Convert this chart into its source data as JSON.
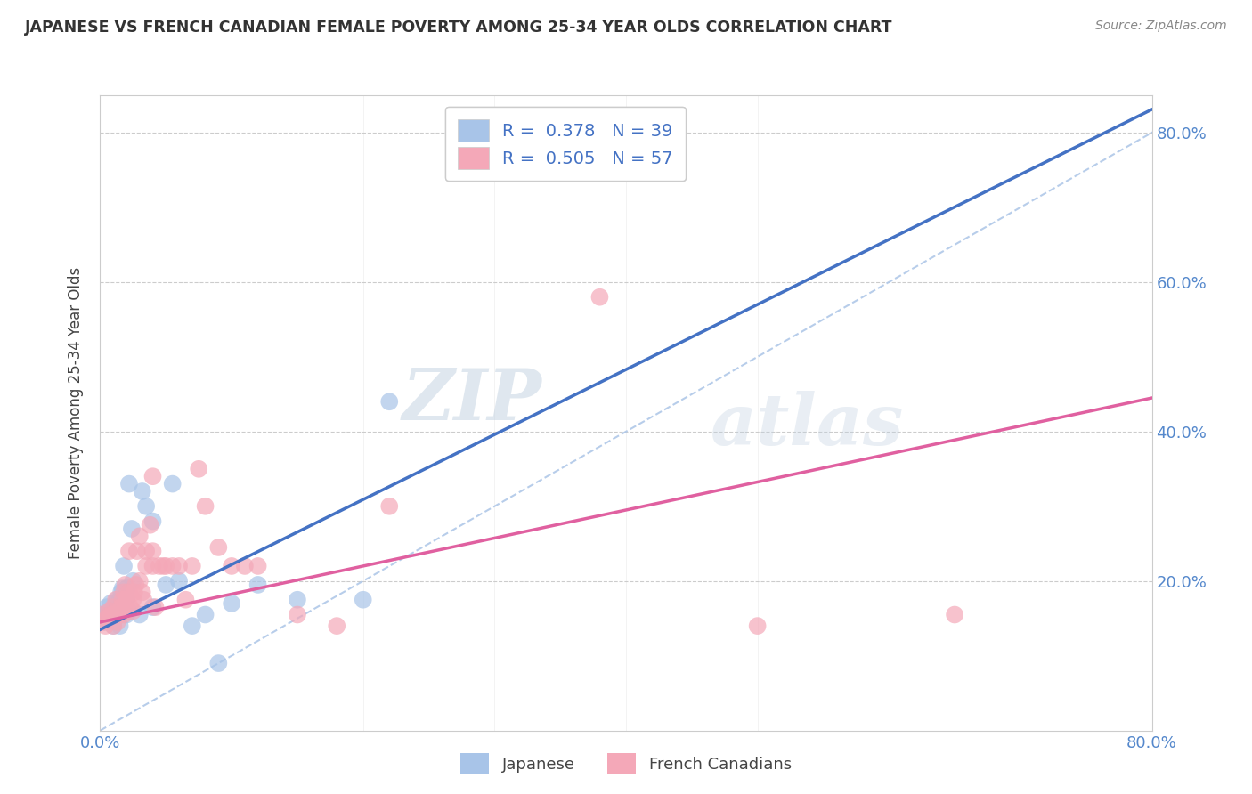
{
  "title": "JAPANESE VS FRENCH CANADIAN FEMALE POVERTY AMONG 25-34 YEAR OLDS CORRELATION CHART",
  "source": "Source: ZipAtlas.com",
  "ylabel": "Female Poverty Among 25-34 Year Olds",
  "xlim": [
    0.0,
    0.8
  ],
  "ylim": [
    0.0,
    0.85
  ],
  "japanese_R": 0.378,
  "japanese_N": 39,
  "french_R": 0.505,
  "french_N": 57,
  "japanese_color": "#a8c4e8",
  "french_color": "#f4a8b8",
  "japanese_line_color": "#4472c4",
  "french_line_color": "#e060a0",
  "dashed_line_color": "#b0c8e8",
  "watermark_zip": "ZIP",
  "watermark_atlas": "atlas",
  "japanese_x": [
    0.0,
    0.003,
    0.005,
    0.007,
    0.008,
    0.01,
    0.01,
    0.012,
    0.013,
    0.015,
    0.015,
    0.015,
    0.016,
    0.017,
    0.018,
    0.018,
    0.02,
    0.02,
    0.02,
    0.022,
    0.022,
    0.024,
    0.025,
    0.03,
    0.032,
    0.035,
    0.04,
    0.04,
    0.05,
    0.055,
    0.06,
    0.07,
    0.08,
    0.09,
    0.1,
    0.12,
    0.15,
    0.2,
    0.22
  ],
  "japanese_y": [
    0.155,
    0.145,
    0.165,
    0.155,
    0.17,
    0.14,
    0.155,
    0.165,
    0.175,
    0.14,
    0.16,
    0.175,
    0.185,
    0.19,
    0.16,
    0.22,
    0.155,
    0.175,
    0.19,
    0.16,
    0.33,
    0.27,
    0.2,
    0.155,
    0.32,
    0.3,
    0.165,
    0.28,
    0.195,
    0.33,
    0.2,
    0.14,
    0.155,
    0.09,
    0.17,
    0.195,
    0.175,
    0.175,
    0.44
  ],
  "french_x": [
    0.0,
    0.002,
    0.004,
    0.005,
    0.007,
    0.008,
    0.01,
    0.01,
    0.01,
    0.012,
    0.013,
    0.015,
    0.016,
    0.017,
    0.018,
    0.018,
    0.019,
    0.02,
    0.02,
    0.022,
    0.022,
    0.023,
    0.025,
    0.025,
    0.026,
    0.027,
    0.028,
    0.03,
    0.03,
    0.032,
    0.033,
    0.035,
    0.035,
    0.038,
    0.04,
    0.04,
    0.04,
    0.042,
    0.045,
    0.048,
    0.05,
    0.055,
    0.06,
    0.065,
    0.07,
    0.075,
    0.08,
    0.09,
    0.1,
    0.11,
    0.12,
    0.15,
    0.18,
    0.22,
    0.38,
    0.5,
    0.65
  ],
  "french_y": [
    0.155,
    0.145,
    0.14,
    0.15,
    0.16,
    0.155,
    0.14,
    0.155,
    0.165,
    0.175,
    0.145,
    0.155,
    0.165,
    0.175,
    0.155,
    0.185,
    0.195,
    0.16,
    0.175,
    0.185,
    0.24,
    0.165,
    0.16,
    0.175,
    0.185,
    0.195,
    0.24,
    0.2,
    0.26,
    0.185,
    0.175,
    0.22,
    0.24,
    0.275,
    0.22,
    0.24,
    0.34,
    0.165,
    0.22,
    0.22,
    0.22,
    0.22,
    0.22,
    0.175,
    0.22,
    0.35,
    0.3,
    0.245,
    0.22,
    0.22,
    0.22,
    0.155,
    0.14,
    0.3,
    0.58,
    0.14,
    0.155
  ]
}
